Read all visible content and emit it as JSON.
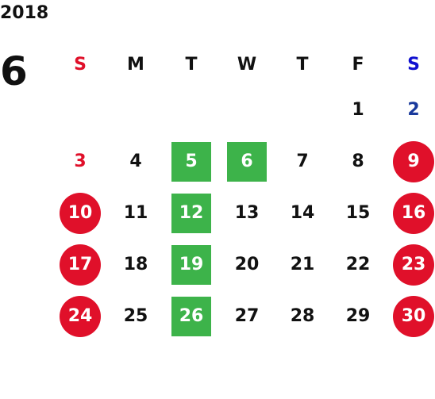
{
  "calendar": {
    "year": "2018",
    "month": "6",
    "weekdays": [
      {
        "label": "S",
        "color": "#e0102a"
      },
      {
        "label": "M",
        "color": "#111111"
      },
      {
        "label": "T",
        "color": "#111111"
      },
      {
        "label": "W",
        "color": "#111111"
      },
      {
        "label": "T",
        "color": "#111111"
      },
      {
        "label": "F",
        "color": "#111111"
      },
      {
        "label": "S",
        "color": "#1010d0"
      }
    ],
    "days": [
      {
        "label": "",
        "style": "empty"
      },
      {
        "label": "",
        "style": "empty"
      },
      {
        "label": "",
        "style": "empty"
      },
      {
        "label": "",
        "style": "empty"
      },
      {
        "label": "",
        "style": "empty"
      },
      {
        "label": "1",
        "style": "plain"
      },
      {
        "label": "2",
        "style": "saturday"
      },
      {
        "label": "3",
        "style": "sunday"
      },
      {
        "label": "4",
        "style": "plain"
      },
      {
        "label": "5",
        "style": "green"
      },
      {
        "label": "6",
        "style": "green"
      },
      {
        "label": "7",
        "style": "plain"
      },
      {
        "label": "8",
        "style": "plain"
      },
      {
        "label": "9",
        "style": "red"
      },
      {
        "label": "10",
        "style": "red"
      },
      {
        "label": "11",
        "style": "plain"
      },
      {
        "label": "12",
        "style": "green"
      },
      {
        "label": "13",
        "style": "plain"
      },
      {
        "label": "14",
        "style": "plain"
      },
      {
        "label": "15",
        "style": "plain"
      },
      {
        "label": "16",
        "style": "red"
      },
      {
        "label": "17",
        "style": "red"
      },
      {
        "label": "18",
        "style": "plain"
      },
      {
        "label": "19",
        "style": "green"
      },
      {
        "label": "20",
        "style": "plain"
      },
      {
        "label": "21",
        "style": "plain"
      },
      {
        "label": "22",
        "style": "plain"
      },
      {
        "label": "23",
        "style": "red"
      },
      {
        "label": "24",
        "style": "red"
      },
      {
        "label": "25",
        "style": "plain"
      },
      {
        "label": "26",
        "style": "green"
      },
      {
        "label": "27",
        "style": "plain"
      },
      {
        "label": "28",
        "style": "plain"
      },
      {
        "label": "29",
        "style": "plain"
      },
      {
        "label": "30",
        "style": "red"
      }
    ],
    "colors": {
      "sunday_text": "#e0102a",
      "saturday_text": "#1a3a9c",
      "holiday_fill": "#e0102a",
      "highlight_fill": "#3db34a"
    }
  }
}
